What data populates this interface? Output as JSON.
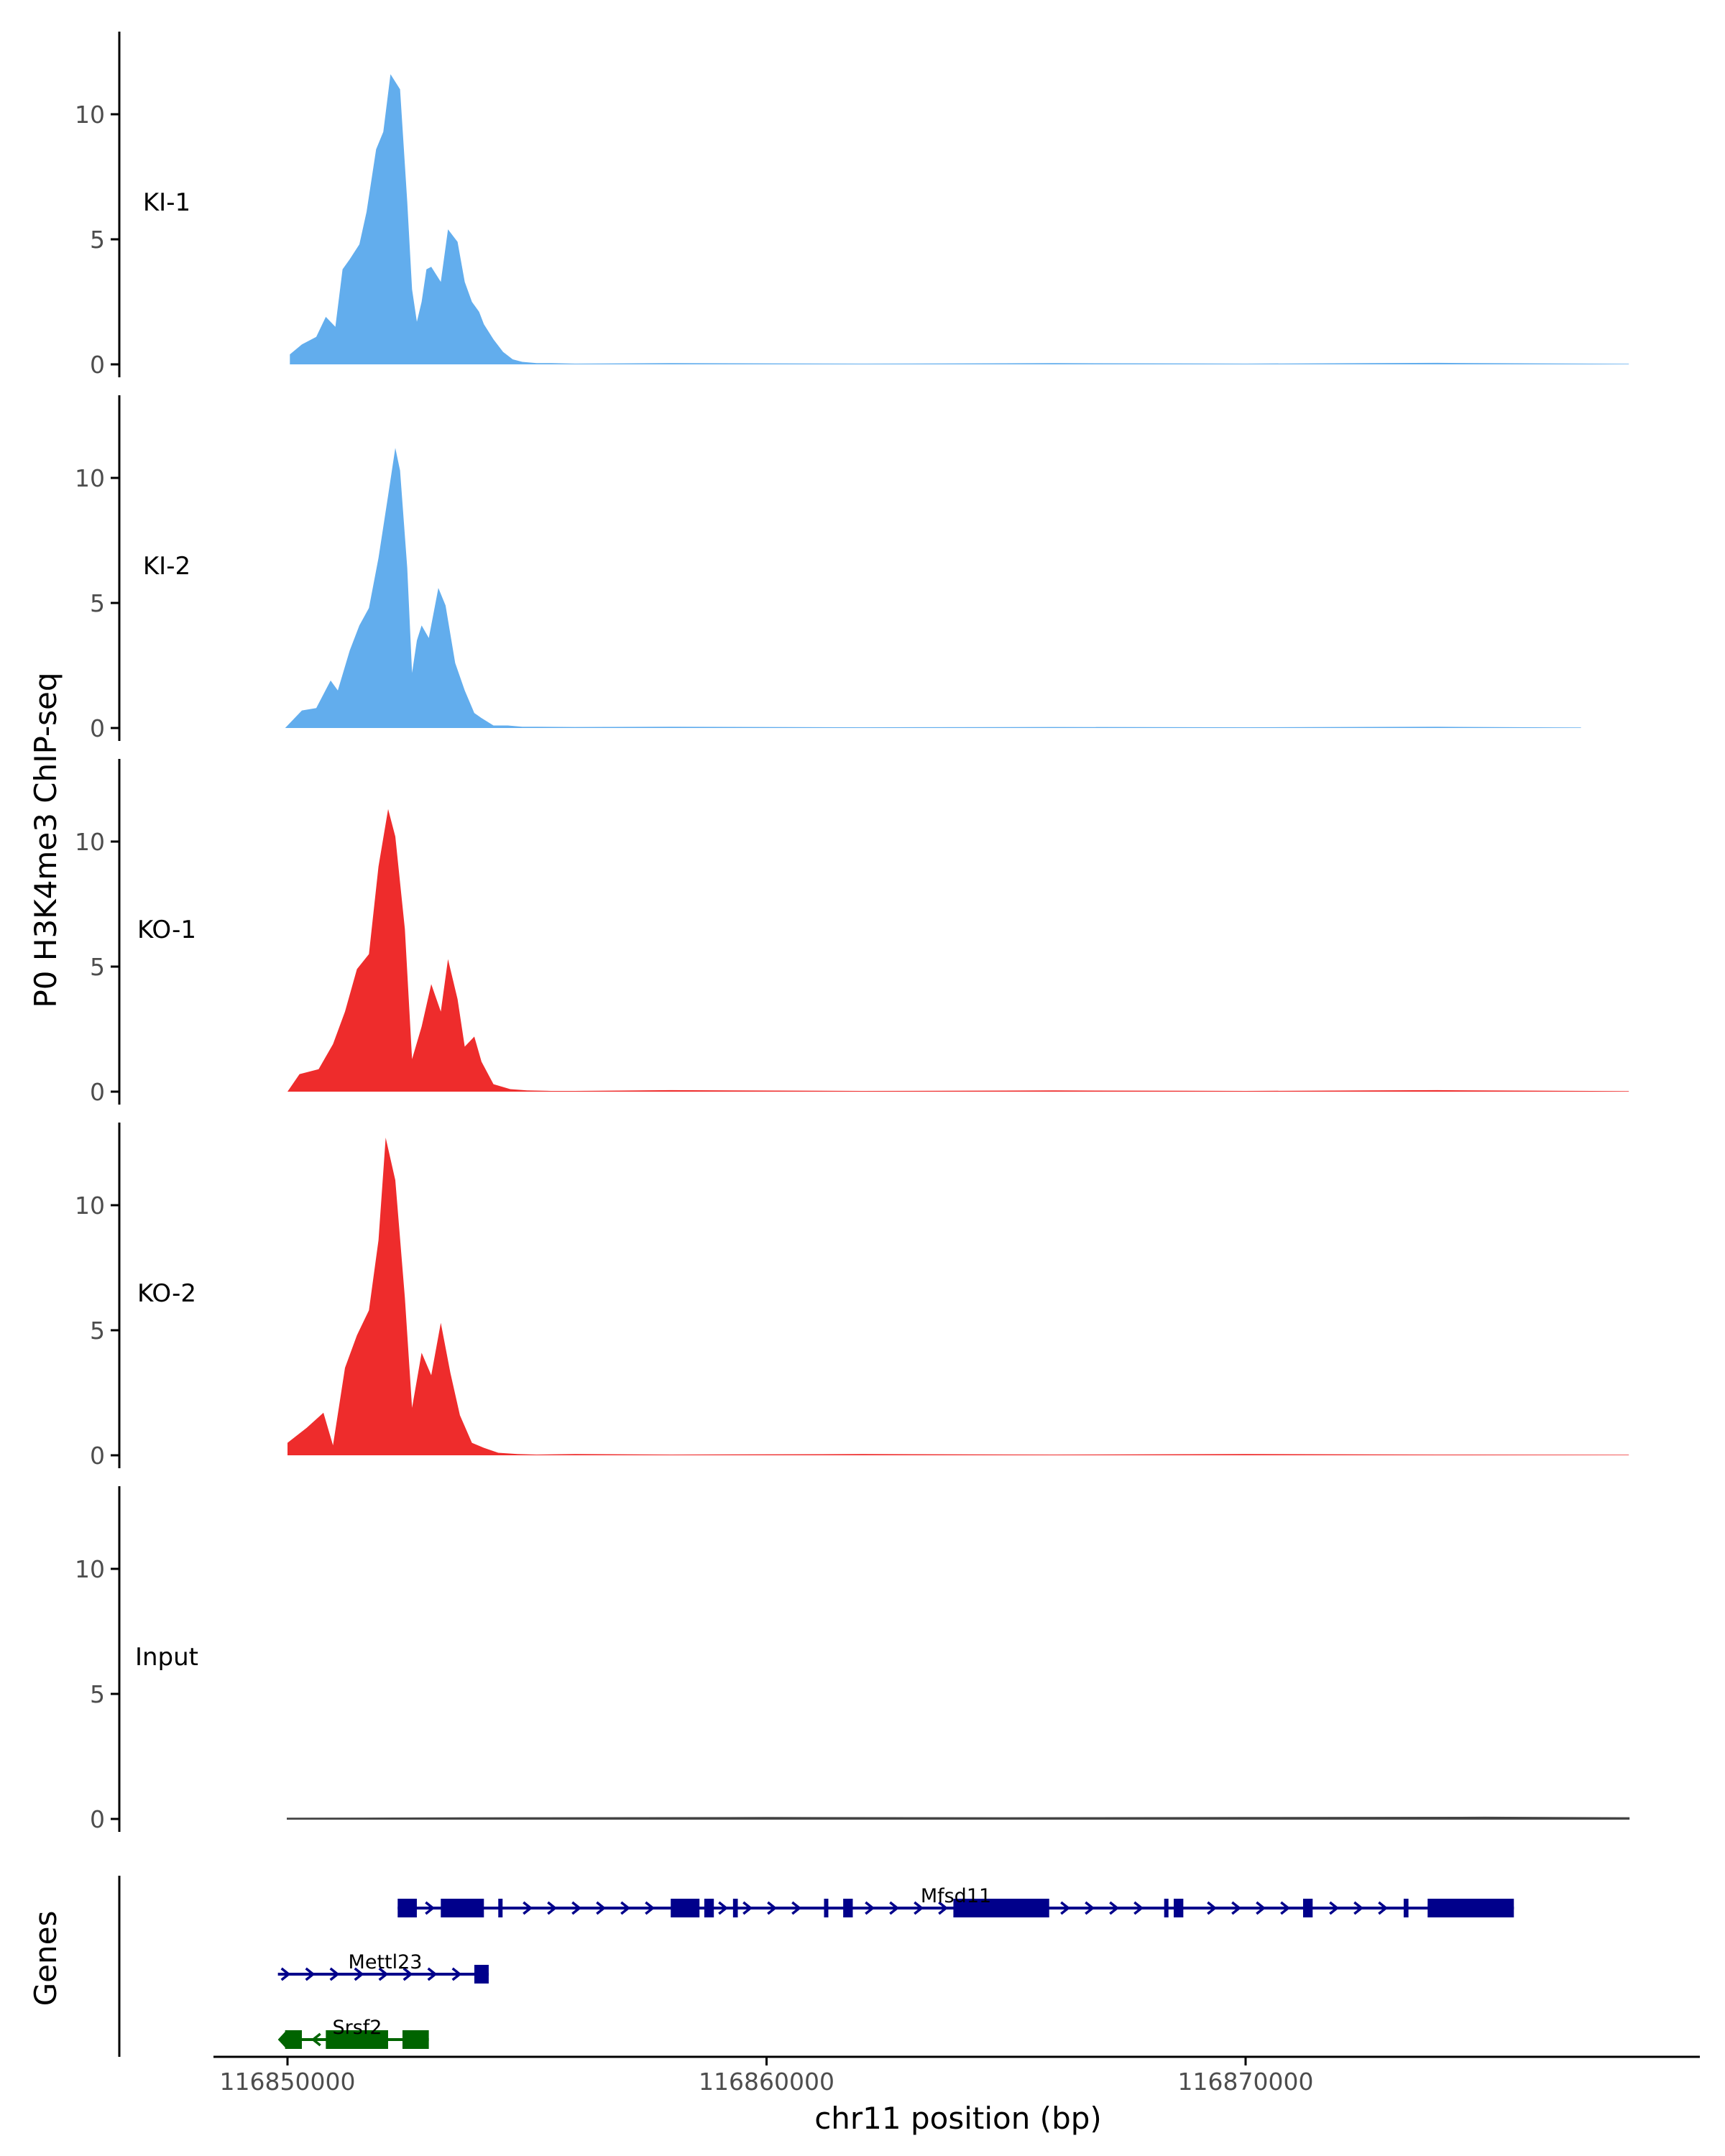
{
  "chart_data": {
    "type": "area",
    "ylabel": "P0 H3K4me3 ChIP-seq",
    "xlabel": "chr11 position (bp)",
    "xlim": [
      116848700,
      116879800
    ],
    "ylim": [
      0,
      13
    ],
    "y_ticks": [
      "0",
      "5",
      "10"
    ],
    "x_ticks": [
      {
        "value": 116850000,
        "label": "116850000"
      },
      {
        "value": 116860000,
        "label": "116860000"
      },
      {
        "value": 116870000,
        "label": "116870000"
      }
    ],
    "grid": false,
    "colors": {
      "KI": "#62aded",
      "KO": "#ee2c2c",
      "Input": "#444444",
      "gene_plus": "#00008b",
      "gene_minus": "#006400",
      "axis": "#000000",
      "tick_text": "#4d4d4d"
    },
    "tracks": [
      {
        "name": "KI-1",
        "color": "#62aded",
        "x": [
          116850050,
          116850300,
          116850600,
          116850800,
          116851000,
          116851150,
          116851300,
          116851500,
          116851650,
          116851850,
          116852000,
          116852150,
          116852350,
          116852500,
          116852600,
          116852700,
          116852800,
          116852900,
          116853000,
          116853200,
          116853350,
          116853550,
          116853700,
          116853850,
          116854000,
          116854100,
          116854300,
          116854500,
          116854700,
          116854900,
          116855200,
          116855500,
          116856000,
          116858000,
          116862000,
          116866000,
          116870000,
          116874000,
          116878000
        ],
        "values": [
          0.4,
          0.8,
          1.1,
          1.9,
          1.5,
          3.8,
          4.2,
          4.8,
          6.1,
          8.6,
          9.3,
          11.6,
          11.0,
          6.5,
          3.0,
          1.7,
          2.5,
          3.8,
          3.9,
          3.3,
          5.4,
          4.9,
          3.3,
          2.5,
          2.1,
          1.6,
          1.0,
          0.5,
          0.2,
          0.1,
          0.05,
          0.05,
          0.03,
          0.05,
          0.03,
          0.05,
          0.03,
          0.06,
          0.02
        ]
      },
      {
        "name": "KI-2",
        "color": "#62aded",
        "x": [
          116849950,
          116850300,
          116850600,
          116850900,
          116851050,
          116851300,
          116851500,
          116851700,
          116851900,
          116852100,
          116852250,
          116852350,
          116852500,
          116852600,
          116852700,
          116852800,
          116852950,
          116853150,
          116853300,
          116853500,
          116853700,
          116853900,
          116854050,
          116854300,
          116854600,
          116854900,
          116855200,
          116856000,
          116858000,
          116862000,
          116866000,
          116870000,
          116874000,
          116877000
        ],
        "values": [
          0.0,
          0.7,
          0.8,
          1.9,
          1.5,
          3.1,
          4.1,
          4.8,
          6.8,
          9.3,
          11.2,
          10.3,
          6.4,
          2.2,
          3.5,
          4.1,
          3.6,
          5.6,
          4.9,
          2.6,
          1.5,
          0.6,
          0.4,
          0.1,
          0.1,
          0.05,
          0.05,
          0.04,
          0.05,
          0.03,
          0.04,
          0.03,
          0.05,
          0.02
        ]
      },
      {
        "name": "KO-1",
        "color": "#ee2c2c",
        "x": [
          116850000,
          116850250,
          116850650,
          116850950,
          116851200,
          116851450,
          116851700,
          116851900,
          116852100,
          116852250,
          116852450,
          116852600,
          116852800,
          116853000,
          116853200,
          116853350,
          116853550,
          116853700,
          116853900,
          116854050,
          116854300,
          116854650,
          116855000,
          116855500,
          116856000,
          116858000,
          116862000,
          116866000,
          116870000,
          116874000,
          116878000
        ],
        "values": [
          0.0,
          0.7,
          0.9,
          1.9,
          3.2,
          4.9,
          5.5,
          9.0,
          11.3,
          10.2,
          6.5,
          1.3,
          2.6,
          4.3,
          3.2,
          5.3,
          3.7,
          1.8,
          2.2,
          1.2,
          0.3,
          0.1,
          0.05,
          0.03,
          0.03,
          0.06,
          0.03,
          0.05,
          0.03,
          0.06,
          0.02
        ]
      },
      {
        "name": "KO-2",
        "color": "#ee2c2c",
        "x": [
          116850000,
          116850400,
          116850750,
          116850950,
          116851200,
          116851450,
          116851700,
          116851900,
          116852050,
          116852250,
          116852450,
          116852600,
          116852800,
          116853000,
          116853200,
          116853400,
          116853600,
          116853850,
          116854100,
          116854400,
          116854800,
          116855200,
          116856000,
          116858000,
          116862000,
          116866000,
          116870000,
          116874000,
          116878000
        ],
        "values": [
          0.5,
          1.1,
          1.7,
          0.4,
          3.5,
          4.8,
          5.8,
          8.6,
          12.7,
          11.0,
          6.3,
          1.9,
          4.1,
          3.2,
          5.3,
          3.3,
          1.6,
          0.5,
          0.3,
          0.1,
          0.05,
          0.03,
          0.05,
          0.03,
          0.05,
          0.03,
          0.05,
          0.03,
          0.02
        ]
      },
      {
        "name": "Input",
        "color": "#444444",
        "x": [
          116850000,
          116855000,
          116860000,
          116865000,
          116870000,
          116875000,
          116878000
        ],
        "values": [
          0.02,
          0.04,
          0.05,
          0.04,
          0.05,
          0.06,
          0.04
        ]
      }
    ],
    "genes_panel": {
      "label": "Genes",
      "genes": [
        {
          "name": "Mfsd11",
          "strand": "+",
          "color": "#00008b",
          "start": 116852300,
          "end": 116875600,
          "exons": [
            [
              116852300,
              116852700
            ],
            [
              116853200,
              116854100
            ],
            [
              116854400,
              116854450
            ],
            [
              116858000,
              116858600
            ],
            [
              116858700,
              116858900
            ],
            [
              116859300,
              116859400
            ],
            [
              116861200,
              116861250
            ],
            [
              116861600,
              116861800
            ],
            [
              116863900,
              116865900
            ],
            [
              116868300,
              116868350
            ],
            [
              116868500,
              116868700
            ],
            [
              116871200,
              116871400
            ],
            [
              116873300,
              116873400
            ],
            [
              116873800,
              116875600
            ]
          ]
        },
        {
          "name": "Mettl23",
          "strand": "+",
          "color": "#00008b",
          "start": 116849800,
          "end": 116854200,
          "exons": [
            [
              116853900,
              116854200
            ]
          ]
        },
        {
          "name": "Srsf2",
          "strand": "-",
          "color": "#006400",
          "start": 116849950,
          "end": 116852950,
          "exons": [
            [
              116849950,
              116850300
            ],
            [
              116850800,
              116852100
            ],
            [
              116852400,
              116852950
            ]
          ]
        }
      ]
    }
  }
}
